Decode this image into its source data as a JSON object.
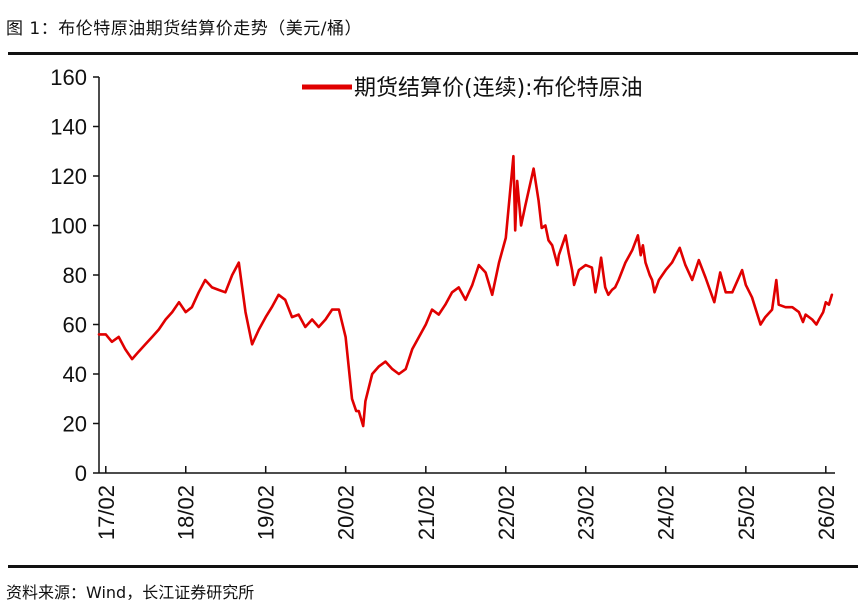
{
  "figure": {
    "title": "图 1：布伦特原油期货结算价走势（美元/桶）",
    "source": "资料来源：Wind，长江证券研究所"
  },
  "colors": {
    "series": "#e00000",
    "axis": "#111111"
  },
  "chart_data": {
    "type": "line",
    "ylim": [
      0,
      160
    ],
    "yticks": [
      0,
      20,
      40,
      60,
      80,
      100,
      120,
      140,
      160
    ],
    "xlim": [
      "2017-01-01",
      "2026-03-15"
    ],
    "xticks": [
      {
        "date": "2017-02-01",
        "label": "17/02"
      },
      {
        "date": "2018-02-01",
        "label": "18/02"
      },
      {
        "date": "2019-02-01",
        "label": "19/02"
      },
      {
        "date": "2020-02-01",
        "label": "20/02"
      },
      {
        "date": "2021-02-01",
        "label": "21/02"
      },
      {
        "date": "2022-02-01",
        "label": "22/02"
      },
      {
        "date": "2023-02-01",
        "label": "23/02"
      },
      {
        "date": "2024-02-01",
        "label": "24/02"
      },
      {
        "date": "2025-02-01",
        "label": "25/02"
      },
      {
        "date": "2026-02-01",
        "label": "26/02"
      }
    ],
    "legend_position": "top",
    "series": [
      {
        "name": "期货结算价(连续):布伦特原油",
        "points": [
          [
            "2017-01-01",
            56
          ],
          [
            "2017-02-01",
            56
          ],
          [
            "2017-03-01",
            53
          ],
          [
            "2017-04-01",
            55
          ],
          [
            "2017-05-01",
            50
          ],
          [
            "2017-06-01",
            46
          ],
          [
            "2017-07-01",
            49
          ],
          [
            "2017-08-01",
            52
          ],
          [
            "2017-09-01",
            55
          ],
          [
            "2017-10-01",
            58
          ],
          [
            "2017-11-01",
            62
          ],
          [
            "2017-12-01",
            65
          ],
          [
            "2018-01-01",
            69
          ],
          [
            "2018-02-01",
            65
          ],
          [
            "2018-03-01",
            67
          ],
          [
            "2018-04-01",
            73
          ],
          [
            "2018-05-01",
            78
          ],
          [
            "2018-06-01",
            75
          ],
          [
            "2018-07-01",
            74
          ],
          [
            "2018-08-01",
            73
          ],
          [
            "2018-09-01",
            80
          ],
          [
            "2018-10-01",
            85
          ],
          [
            "2018-11-01",
            65
          ],
          [
            "2018-12-01",
            52
          ],
          [
            "2019-01-01",
            58
          ],
          [
            "2019-02-01",
            63
          ],
          [
            "2019-03-01",
            67
          ],
          [
            "2019-04-01",
            72
          ],
          [
            "2019-05-01",
            70
          ],
          [
            "2019-06-01",
            63
          ],
          [
            "2019-07-01",
            64
          ],
          [
            "2019-08-01",
            59
          ],
          [
            "2019-09-01",
            62
          ],
          [
            "2019-10-01",
            59
          ],
          [
            "2019-11-01",
            62
          ],
          [
            "2019-12-01",
            66
          ],
          [
            "2020-01-01",
            66
          ],
          [
            "2020-02-01",
            55
          ],
          [
            "2020-03-01",
            30
          ],
          [
            "2020-03-20",
            25
          ],
          [
            "2020-04-01",
            25
          ],
          [
            "2020-04-21",
            19
          ],
          [
            "2020-05-01",
            29
          ],
          [
            "2020-06-01",
            40
          ],
          [
            "2020-07-01",
            43
          ],
          [
            "2020-08-01",
            45
          ],
          [
            "2020-09-01",
            42
          ],
          [
            "2020-10-01",
            40
          ],
          [
            "2020-11-01",
            42
          ],
          [
            "2020-12-01",
            50
          ],
          [
            "2021-01-01",
            55
          ],
          [
            "2021-02-01",
            60
          ],
          [
            "2021-03-01",
            66
          ],
          [
            "2021-04-01",
            64
          ],
          [
            "2021-05-01",
            68
          ],
          [
            "2021-06-01",
            73
          ],
          [
            "2021-07-01",
            75
          ],
          [
            "2021-08-01",
            70
          ],
          [
            "2021-09-01",
            76
          ],
          [
            "2021-10-01",
            84
          ],
          [
            "2021-11-01",
            81
          ],
          [
            "2021-12-01",
            72
          ],
          [
            "2022-01-01",
            85
          ],
          [
            "2022-02-01",
            95
          ],
          [
            "2022-03-08",
            128
          ],
          [
            "2022-03-16",
            98
          ],
          [
            "2022-03-25",
            118
          ],
          [
            "2022-04-12",
            100
          ],
          [
            "2022-05-01",
            108
          ],
          [
            "2022-06-08",
            123
          ],
          [
            "2022-07-01",
            110
          ],
          [
            "2022-07-15",
            99
          ],
          [
            "2022-08-01",
            100
          ],
          [
            "2022-08-15",
            94
          ],
          [
            "2022-09-01",
            92
          ],
          [
            "2022-09-25",
            84
          ],
          [
            "2022-10-01",
            88
          ],
          [
            "2022-11-01",
            96
          ],
          [
            "2022-11-15",
            89
          ],
          [
            "2022-12-01",
            82
          ],
          [
            "2022-12-10",
            76
          ],
          [
            "2023-01-01",
            82
          ],
          [
            "2023-02-01",
            84
          ],
          [
            "2023-03-01",
            83
          ],
          [
            "2023-03-17",
            73
          ],
          [
            "2023-04-01",
            80
          ],
          [
            "2023-04-12",
            87
          ],
          [
            "2023-05-01",
            75
          ],
          [
            "2023-05-15",
            72
          ],
          [
            "2023-06-01",
            74
          ],
          [
            "2023-06-15",
            75
          ],
          [
            "2023-07-01",
            78
          ],
          [
            "2023-08-01",
            85
          ],
          [
            "2023-09-01",
            90
          ],
          [
            "2023-09-27",
            96
          ],
          [
            "2023-10-10",
            88
          ],
          [
            "2023-10-20",
            92
          ],
          [
            "2023-11-01",
            85
          ],
          [
            "2023-11-20",
            80
          ],
          [
            "2023-12-01",
            78
          ],
          [
            "2023-12-12",
            73
          ],
          [
            "2024-01-01",
            78
          ],
          [
            "2024-02-01",
            82
          ],
          [
            "2024-03-01",
            85
          ],
          [
            "2024-04-05",
            91
          ],
          [
            "2024-05-01",
            84
          ],
          [
            "2024-06-01",
            78
          ],
          [
            "2024-07-01",
            86
          ],
          [
            "2024-08-01",
            79
          ],
          [
            "2024-09-10",
            69
          ],
          [
            "2024-10-07",
            81
          ],
          [
            "2024-11-01",
            73
          ],
          [
            "2024-12-01",
            73
          ],
          [
            "2025-01-15",
            82
          ],
          [
            "2025-02-01",
            76
          ],
          [
            "2025-03-01",
            71
          ],
          [
            "2025-04-09",
            60
          ],
          [
            "2025-05-01",
            63
          ],
          [
            "2025-06-01",
            66
          ],
          [
            "2025-06-20",
            78
          ],
          [
            "2025-07-01",
            68
          ],
          [
            "2025-08-01",
            67
          ],
          [
            "2025-09-01",
            67
          ],
          [
            "2025-10-01",
            65
          ],
          [
            "2025-10-20",
            61
          ],
          [
            "2025-11-01",
            64
          ],
          [
            "2025-12-01",
            62
          ],
          [
            "2025-12-20",
            60
          ],
          [
            "2026-01-01",
            62
          ],
          [
            "2026-01-20",
            65
          ],
          [
            "2026-02-01",
            69
          ],
          [
            "2026-02-15",
            68
          ],
          [
            "2026-03-01",
            72
          ]
        ]
      }
    ]
  }
}
